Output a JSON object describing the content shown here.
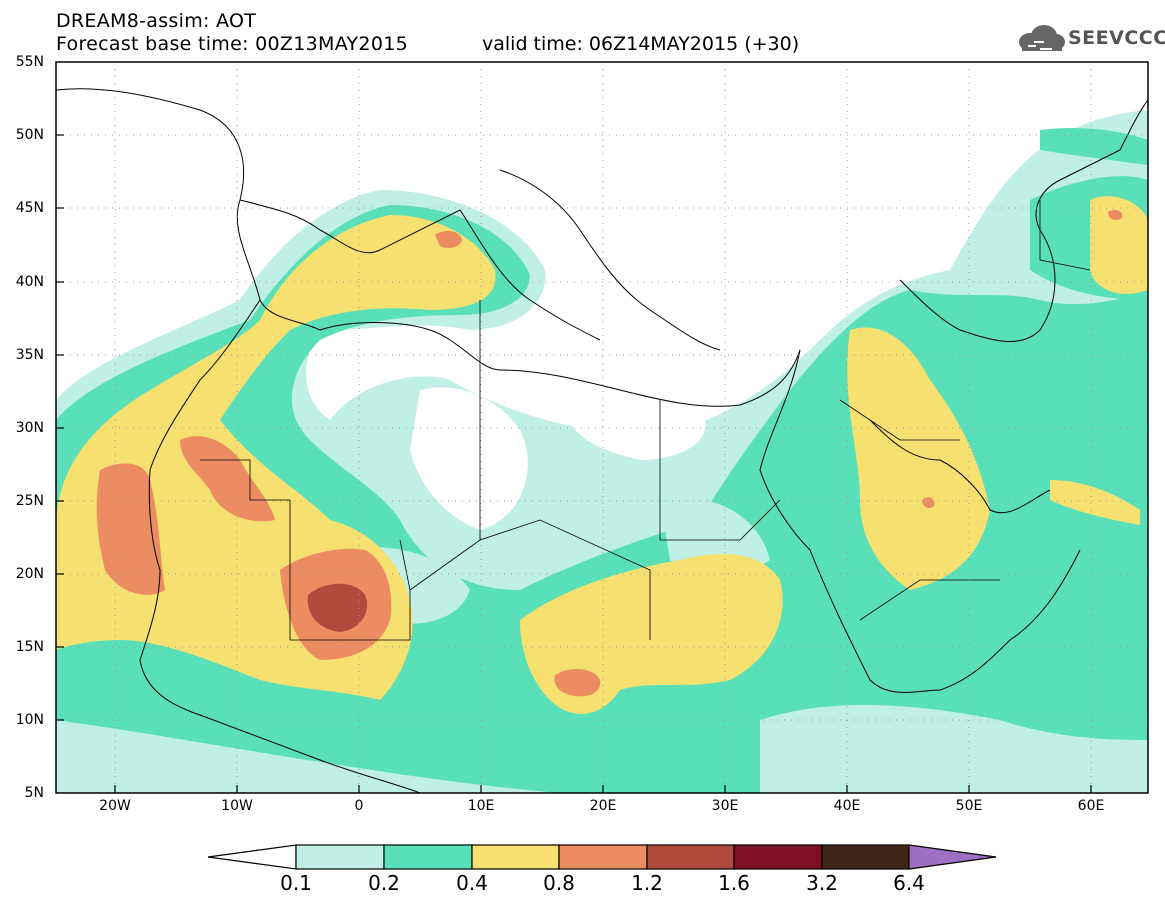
{
  "title": {
    "line1": "DREAM8-assim: AOT",
    "line2": "Forecast base time: 00Z13MAY2015",
    "valid": "valid time: 06Z14MAY2015 (+30)"
  },
  "logo": {
    "text": "SEEVCCC",
    "icon": "cloud-icon",
    "color": "#555555"
  },
  "map": {
    "lat_labels": [
      "55N",
      "50N",
      "45N",
      "40N",
      "35N",
      "30N",
      "25N",
      "20N",
      "15N",
      "10N",
      "5N"
    ],
    "lon_labels": [
      "20W",
      "10W",
      "0",
      "10E",
      "20E",
      "30E",
      "40E",
      "50E",
      "60E"
    ]
  },
  "colorbar": {
    "labels": [
      "0.1",
      "0.2",
      "0.4",
      "0.8",
      "1.2",
      "1.6",
      "3.2",
      "6.4"
    ],
    "colors": [
      "#ffffff",
      "#c0efe6",
      "#5ae0b9",
      "#f6e06f",
      "#ec8c62",
      "#b04a3c",
      "#7d0f26",
      "#3f2618",
      "#9d70c3"
    ]
  }
}
